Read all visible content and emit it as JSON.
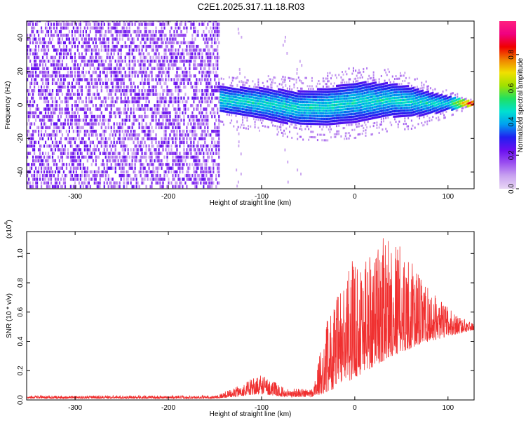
{
  "title": "C2E1.2025.317.11.18.R03",
  "chart_data": [
    {
      "type": "heatmap",
      "xlabel": "Height of straight line (km)",
      "ylabel": "Frequency (Hz)",
      "xlim": [
        -352,
        128
      ],
      "ylim": [
        -50,
        50
      ],
      "xticks": [
        -300,
        -200,
        -100,
        0,
        100
      ],
      "yticks": [
        -40,
        -20,
        0,
        20,
        40
      ],
      "colorbar": {
        "label": "Normalized spectral amplitude",
        "range": [
          0,
          1
        ],
        "ticks": [
          "0.0",
          "0.2",
          "0.4",
          "0.6",
          "0.8"
        ],
        "tick_values": [
          0.0,
          0.2,
          0.4,
          0.6,
          0.8
        ],
        "colormap": [
          "#e8d6f5",
          "#c9a3f0",
          "#9b4ff0",
          "#6a0ff0",
          "#2020f0",
          "#00a0f0",
          "#00e0d0",
          "#20e060",
          "#a0e000",
          "#f0e000",
          "#f08000",
          "#f00000",
          "#f00080",
          "#ff2080"
        ]
      },
      "regions": [
        {
          "name": "broadband noise",
          "x_range": [
            -352,
            -145
          ],
          "freq_range": [
            -50,
            50
          ],
          "amplitude": [
            0.05,
            0.25
          ]
        },
        {
          "name": "tone band",
          "x_range": [
            -145,
            128
          ],
          "center_freq": [
            [
              -145,
              2
            ],
            [
              -100,
              0
            ],
            [
              -60,
              -3
            ],
            [
              -30,
              -2
            ],
            [
              0,
              1
            ],
            [
              40,
              2
            ],
            [
              80,
              0
            ],
            [
              128,
              0
            ]
          ],
          "half_width": [
            [
              -145,
              8
            ],
            [
              0,
              12
            ],
            [
              60,
              9
            ],
            [
              128,
              1
            ]
          ],
          "amplitude": [
            0.25,
            0.5
          ],
          "peak_near_end": 0.9
        }
      ]
    },
    {
      "type": "line",
      "xlabel": "Height of straight line (km)",
      "ylabel": "SNR (10 * v/v)",
      "scale_label": "(x10",
      "scale_exp": "4",
      "scale_close": ")",
      "xlim": [
        -352,
        128
      ],
      "ylim": [
        0,
        1.15
      ],
      "xticks": [
        -300,
        -200,
        -100,
        0,
        100
      ],
      "yticks": [
        "0.0",
        "0.2",
        "0.4",
        "0.6",
        "0.8",
        "1.0"
      ],
      "ytick_values": [
        0.0,
        0.2,
        0.4,
        0.6,
        0.8,
        1.0
      ],
      "color": "#f03030",
      "envelope": [
        {
          "x": -352,
          "base": 0.01,
          "max": 0.03
        },
        {
          "x": -150,
          "base": 0.01,
          "max": 0.03
        },
        {
          "x": -130,
          "base": 0.02,
          "max": 0.08
        },
        {
          "x": -100,
          "base": 0.04,
          "max": 0.18
        },
        {
          "x": -75,
          "base": 0.02,
          "max": 0.08
        },
        {
          "x": -45,
          "base": 0.02,
          "max": 0.08
        },
        {
          "x": -30,
          "base": 0.05,
          "max": 0.55
        },
        {
          "x": 0,
          "base": 0.15,
          "max": 1.0
        },
        {
          "x": 40,
          "base": 0.3,
          "max": 1.15
        },
        {
          "x": 80,
          "base": 0.4,
          "max": 0.75
        },
        {
          "x": 110,
          "base": 0.45,
          "max": 0.58
        },
        {
          "x": 128,
          "base": 0.48,
          "max": 0.52
        }
      ]
    }
  ]
}
